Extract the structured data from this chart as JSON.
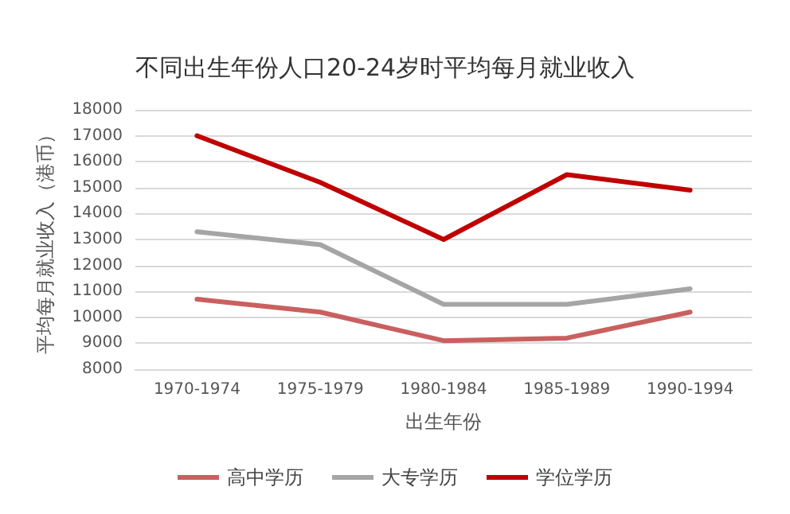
{
  "chart_data": {
    "type": "line",
    "title": "不同出生年份人口20-24岁时平均每月就业收入",
    "xlabel": "出生年份",
    "ylabel": "平均每月就业收入（港币）",
    "categories": [
      "1970-1974",
      "1975-1979",
      "1980-1984",
      "1985-1989",
      "1990-1994"
    ],
    "series": [
      {
        "name": "高中学历",
        "color": "#c9605f",
        "values": [
          10700,
          10200,
          9100,
          9200,
          10200
        ]
      },
      {
        "name": "大专学历",
        "color": "#a5a5a5",
        "values": [
          13300,
          12800,
          10500,
          10500,
          11100
        ]
      },
      {
        "name": "学位学历",
        "color": "#c00000",
        "values": [
          17000,
          15200,
          13000,
          15500,
          14900
        ]
      }
    ],
    "ylim": [
      8000,
      18000
    ],
    "yticks": [
      8000,
      9000,
      10000,
      11000,
      12000,
      13000,
      14000,
      15000,
      16000,
      17000,
      18000
    ],
    "grid": "y",
    "legend": "bottom",
    "marker": "none",
    "line_style": "solid"
  }
}
